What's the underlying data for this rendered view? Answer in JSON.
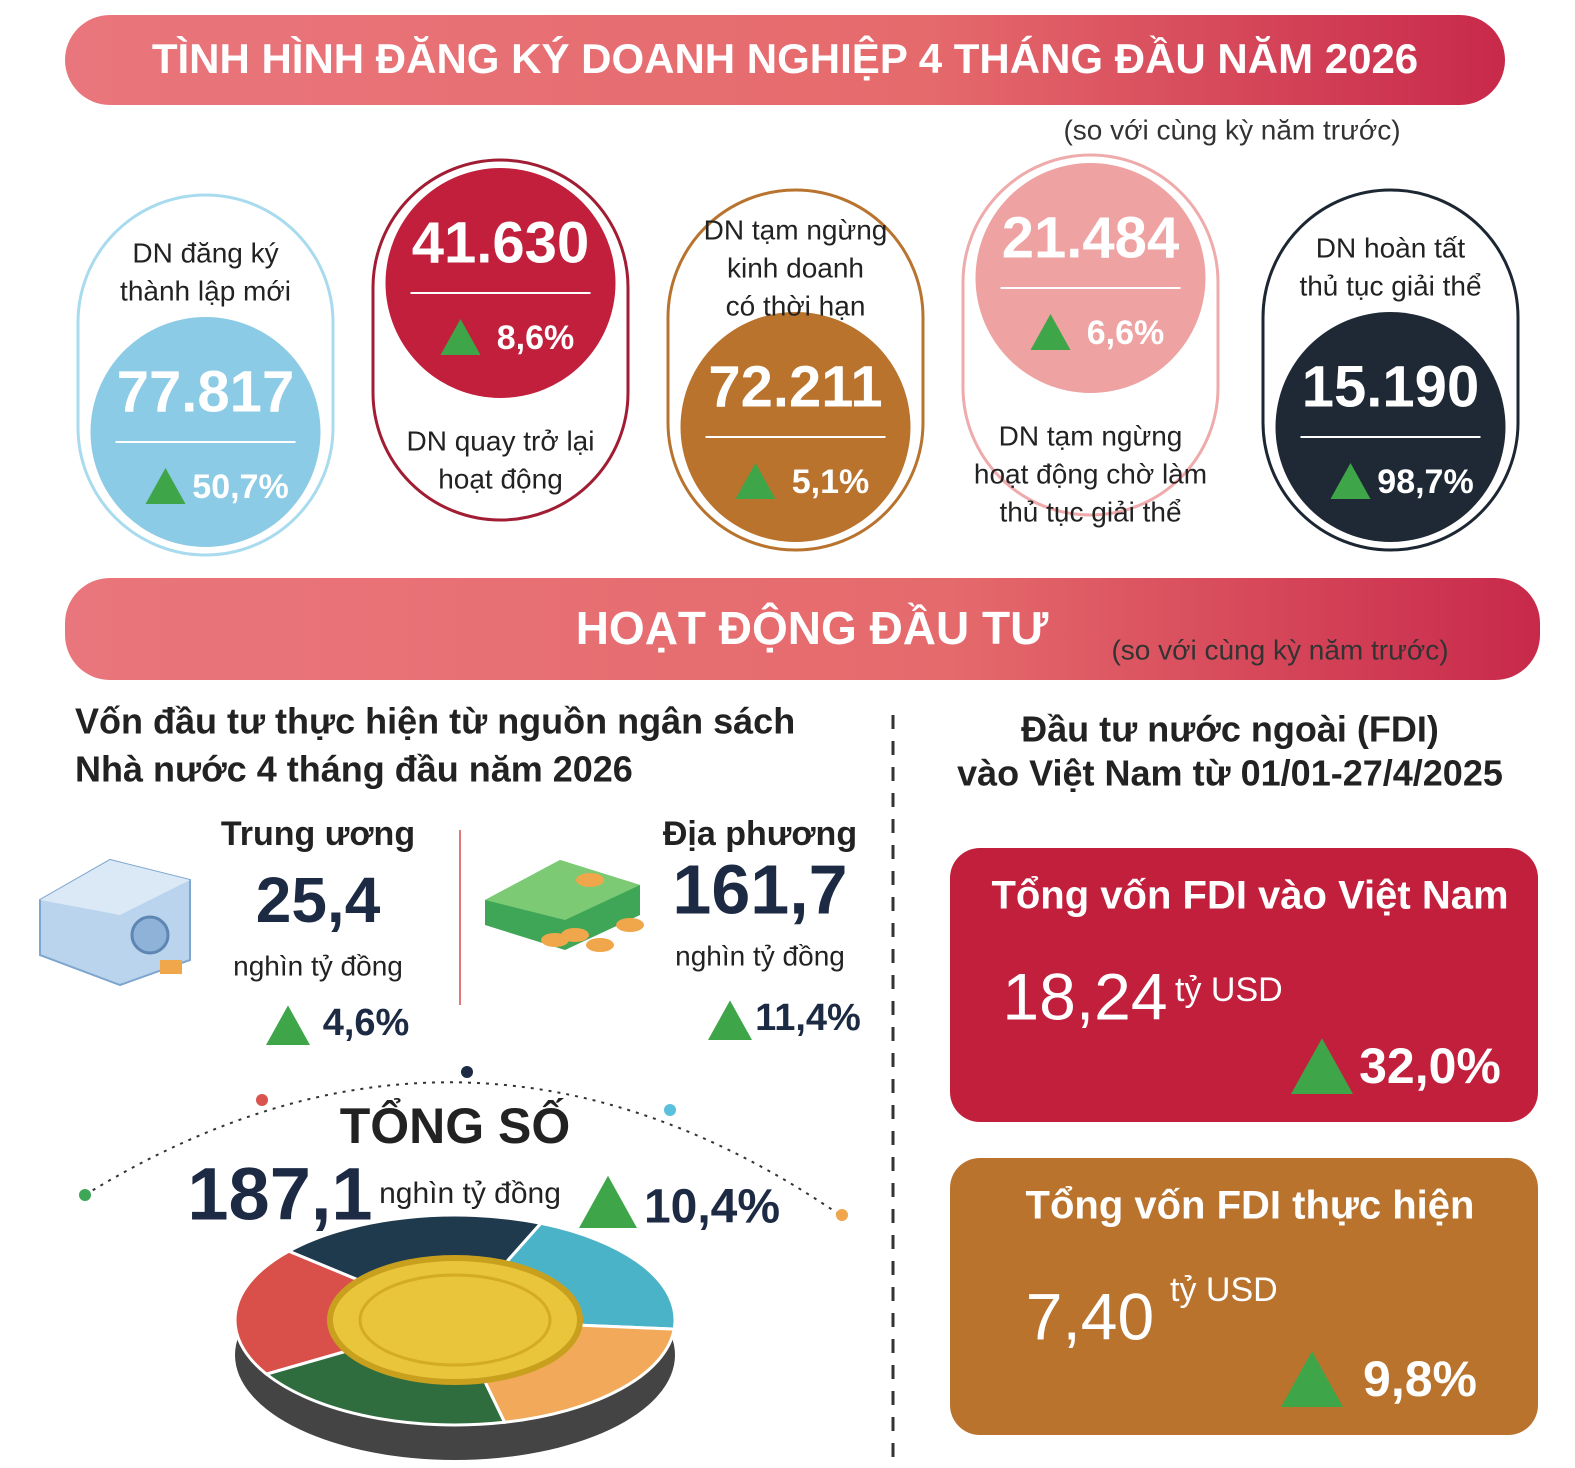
{
  "header": {
    "title": "TÌNH HÌNH ĐĂNG KÝ DOANH NGHIỆP 4 THÁNG ĐẦU NĂM 2026",
    "note": "(so với cùng kỳ năm trước)"
  },
  "cards": [
    {
      "label": [
        "DN đăng ký",
        "thành lập mới"
      ],
      "value": "77.817",
      "change": "50,7%"
    },
    {
      "label": [
        "DN quay trở lại",
        "hoạt động"
      ],
      "value": "41.630",
      "change": "8,6%"
    },
    {
      "label": [
        "DN tạm ngừng",
        "kinh doanh",
        "có thời hạn"
      ],
      "value": "72.211",
      "change": "5,1%"
    },
    {
      "label": [
        "DN tạm ngừng",
        "hoạt động chờ làm",
        "thủ tục giải thể"
      ],
      "value": "21.484",
      "change": "6,6%"
    },
    {
      "label": [
        "DN hoàn tất",
        "thủ tục giải thể"
      ],
      "value": "15.190",
      "change": "98,7%"
    }
  ],
  "investment": {
    "title": "HOẠT ĐỘNG ĐẦU TƯ",
    "note": "(so với cùng kỳ năm trước)",
    "budget": {
      "heading": [
        "Vốn đầu tư thực hiện từ nguồn ngân sách",
        "Nhà nước 4 tháng đầu năm 2026"
      ],
      "items": [
        {
          "label": "Trung ương",
          "value": "25,4",
          "unit": "nghìn tỷ đồng",
          "change": "4,6%"
        },
        {
          "label": "Địa phương",
          "value": "161,7",
          "unit": "nghìn tỷ đồng",
          "change": "11,4%"
        }
      ],
      "total": {
        "label": "TỔNG SỐ",
        "value": "187,1",
        "unit": "nghìn tỷ đồng",
        "change": "10,4%"
      }
    },
    "fdi": {
      "heading": [
        "Đầu tư nước ngoài (FDI)",
        "vào Việt Nam từ 01/01-27/4/2025"
      ],
      "boxes": [
        {
          "title": "Tổng vốn FDI vào Việt Nam",
          "value": "18,24",
          "unit": "tỷ USD",
          "change": "32,0%"
        },
        {
          "title": "Tổng vốn FDI thực hiện",
          "value": "7,40",
          "unit": "tỷ USD",
          "change": "9,8%"
        }
      ]
    }
  }
}
